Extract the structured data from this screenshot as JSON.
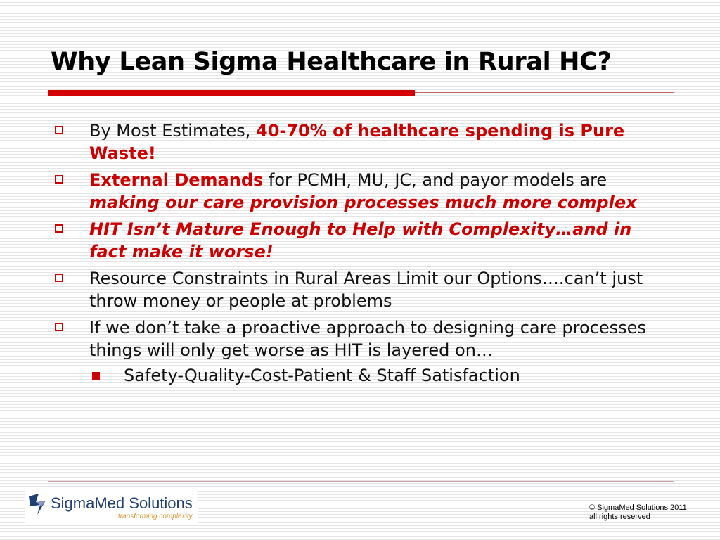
{
  "slide": {
    "title": "Why Lean Sigma Healthcare in Rural HC?",
    "bullets": [
      {
        "a": "By Most Estimates, ",
        "b": "40-70% of healthcare spending is Pure Waste!"
      },
      {
        "a": "External Demands",
        "b": " for PCMH, MU, JC, and payor models are ",
        "c": "making our care provision processes much more complex"
      },
      {
        "a": "HIT Isn’t Mature Enough to Help with Complexity…and in fact make it worse!"
      },
      {
        "a": "Resource Constraints in Rural Areas Limit our Options….can’t just throw money or people at problems"
      },
      {
        "a": "If we don’t take a proactive approach to designing care processes things will only get worse as HIT is layered on…"
      }
    ],
    "sub_bullet": "Safety-Quality-Cost-Patient & Staff Satisfaction"
  },
  "footer": {
    "logo_name": "SigmaMed Solutions",
    "logo_tagline": "transforming complexity",
    "copyright_line1": "© SigmaMed Solutions 2011",
    "copyright_line2": "all rights reserved"
  },
  "colors": {
    "accent": "#cc0000",
    "rule": "#d40000",
    "logo_blue": "#1f3f72",
    "logo_orange": "#d9902a"
  }
}
